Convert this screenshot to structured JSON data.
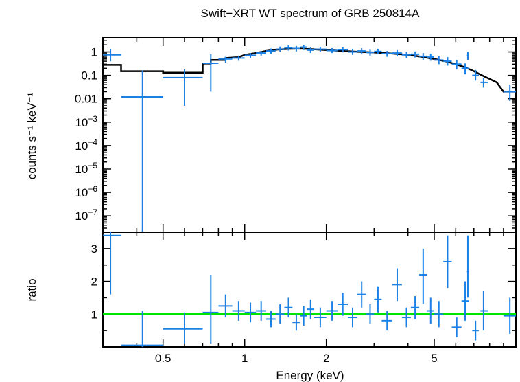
{
  "chart_data": {
    "type": "scatter",
    "title": "Swift−XRT WT spectrum of GRB 250814A",
    "xlabel": "Energy (keV)",
    "x_scale": "log",
    "xlim": [
      0.3,
      10
    ],
    "x_ticks": [
      0.5,
      1,
      2,
      5
    ],
    "x_tick_labels": [
      "0.5",
      "1",
      "2",
      "5"
    ],
    "panels": [
      {
        "name": "spectrum",
        "ylabel": "counts s⁻¹ keV⁻¹",
        "y_scale": "log",
        "ylim": [
          2e-08,
          4
        ],
        "y_ticks": [
          1,
          0.1,
          0.01,
          0.001,
          0.0001,
          1e-05,
          1e-06,
          1e-07
        ],
        "y_tick_labels": [
          {
            "base": "1",
            "exp": ""
          },
          {
            "base": "0.1",
            "exp": ""
          },
          {
            "base": "0.01",
            "exp": ""
          },
          {
            "base": "10",
            "exp": "−3"
          },
          {
            "base": "10",
            "exp": "−4"
          },
          {
            "base": "10",
            "exp": "−5"
          },
          {
            "base": "10",
            "exp": "−6"
          },
          {
            "base": "10",
            "exp": "−7"
          }
        ],
        "data_color": "#1a80e6",
        "model_color": "#000000",
        "data": [
          {
            "x": 0.32,
            "xlo": 0.3,
            "xhi": 0.35,
            "y": 0.75,
            "ylo": 0.4,
            "yhi": 1.3
          },
          {
            "x": 0.42,
            "xlo": 0.35,
            "xhi": 0.5,
            "y": 0.012,
            "ylo": 1e-08,
            "yhi": 0.16
          },
          {
            "x": 0.6,
            "xlo": 0.5,
            "xhi": 0.7,
            "y": 0.08,
            "ylo": 0.005,
            "yhi": 0.18
          },
          {
            "x": 0.75,
            "xlo": 0.7,
            "xhi": 0.8,
            "y": 0.33,
            "ylo": 0.02,
            "yhi": 0.8
          },
          {
            "x": 0.85,
            "xlo": 0.8,
            "xhi": 0.9,
            "y": 0.5,
            "ylo": 0.35,
            "yhi": 0.62
          },
          {
            "x": 0.95,
            "xlo": 0.9,
            "xhi": 1.0,
            "y": 0.55,
            "ylo": 0.42,
            "yhi": 0.7
          },
          {
            "x": 1.05,
            "xlo": 1.0,
            "xhi": 1.1,
            "y": 0.72,
            "ylo": 0.55,
            "yhi": 0.9
          },
          {
            "x": 1.15,
            "xlo": 1.1,
            "xhi": 1.2,
            "y": 0.9,
            "ylo": 0.7,
            "yhi": 1.1
          },
          {
            "x": 1.25,
            "xlo": 1.2,
            "xhi": 1.3,
            "y": 1.1,
            "ylo": 0.85,
            "yhi": 1.4
          },
          {
            "x": 1.35,
            "xlo": 1.3,
            "xhi": 1.4,
            "y": 1.3,
            "ylo": 1.0,
            "yhi": 1.7
          },
          {
            "x": 1.45,
            "xlo": 1.4,
            "xhi": 1.5,
            "y": 1.5,
            "ylo": 1.15,
            "yhi": 1.9
          },
          {
            "x": 1.55,
            "xlo": 1.5,
            "xhi": 1.6,
            "y": 1.4,
            "ylo": 1.05,
            "yhi": 1.8
          },
          {
            "x": 1.65,
            "xlo": 1.6,
            "xhi": 1.7,
            "y": 1.6,
            "ylo": 1.2,
            "yhi": 2.0
          },
          {
            "x": 1.75,
            "xlo": 1.7,
            "xhi": 1.8,
            "y": 1.2,
            "ylo": 0.9,
            "yhi": 1.55
          },
          {
            "x": 1.9,
            "xlo": 1.8,
            "xhi": 2.0,
            "y": 1.3,
            "ylo": 1.0,
            "yhi": 1.65
          },
          {
            "x": 2.1,
            "xlo": 2.0,
            "xhi": 2.2,
            "y": 1.15,
            "ylo": 0.9,
            "yhi": 1.45
          },
          {
            "x": 2.3,
            "xlo": 2.2,
            "xhi": 2.4,
            "y": 1.25,
            "ylo": 0.95,
            "yhi": 1.6
          },
          {
            "x": 2.5,
            "xlo": 2.4,
            "xhi": 2.6,
            "y": 1.0,
            "ylo": 0.75,
            "yhi": 1.3
          },
          {
            "x": 2.7,
            "xlo": 2.6,
            "xhi": 2.8,
            "y": 1.1,
            "ylo": 0.8,
            "yhi": 1.45
          },
          {
            "x": 2.9,
            "xlo": 2.8,
            "xhi": 3.0,
            "y": 0.95,
            "ylo": 0.7,
            "yhi": 1.25
          },
          {
            "x": 3.1,
            "xlo": 3.0,
            "xhi": 3.2,
            "y": 1.05,
            "ylo": 0.8,
            "yhi": 1.35
          },
          {
            "x": 3.35,
            "xlo": 3.2,
            "xhi": 3.5,
            "y": 0.85,
            "ylo": 0.62,
            "yhi": 1.1
          },
          {
            "x": 3.65,
            "xlo": 3.5,
            "xhi": 3.8,
            "y": 0.9,
            "ylo": 0.65,
            "yhi": 1.2
          },
          {
            "x": 3.95,
            "xlo": 3.8,
            "xhi": 4.1,
            "y": 0.75,
            "ylo": 0.55,
            "yhi": 1.0
          },
          {
            "x": 4.25,
            "xlo": 4.1,
            "xhi": 4.4,
            "y": 0.8,
            "ylo": 0.58,
            "yhi": 1.05
          },
          {
            "x": 4.55,
            "xlo": 4.4,
            "xhi": 4.7,
            "y": 0.65,
            "ylo": 0.45,
            "yhi": 0.9
          },
          {
            "x": 4.85,
            "xlo": 4.7,
            "xhi": 5.0,
            "y": 0.6,
            "ylo": 0.42,
            "yhi": 0.85
          },
          {
            "x": 5.2,
            "xlo": 5.0,
            "xhi": 5.4,
            "y": 0.45,
            "ylo": 0.3,
            "yhi": 0.65
          },
          {
            "x": 5.6,
            "xlo": 5.4,
            "xhi": 5.8,
            "y": 0.4,
            "ylo": 0.26,
            "yhi": 0.6
          },
          {
            "x": 6.05,
            "xlo": 5.8,
            "xhi": 6.3,
            "y": 0.3,
            "ylo": 0.18,
            "yhi": 0.46
          },
          {
            "x": 6.5,
            "xlo": 6.3,
            "xhi": 6.7,
            "y": 0.2,
            "ylo": 0.11,
            "yhi": 0.32
          },
          {
            "x": 6.65,
            "xlo": 6.6,
            "xhi": 6.7,
            "y": 0.7,
            "ylo": 0.45,
            "yhi": 1.0
          },
          {
            "x": 7.1,
            "xlo": 6.9,
            "xhi": 7.3,
            "y": 0.1,
            "ylo": 0.06,
            "yhi": 0.17
          },
          {
            "x": 7.6,
            "xlo": 7.4,
            "xhi": 7.9,
            "y": 0.05,
            "ylo": 0.03,
            "yhi": 0.08
          },
          {
            "x": 9.5,
            "xlo": 9.0,
            "xhi": 10.0,
            "y": 0.02,
            "ylo": 0.008,
            "yhi": 0.04
          }
        ],
        "model": [
          [
            0.3,
            0.28
          ],
          [
            0.35,
            0.28
          ],
          [
            0.35,
            0.15
          ],
          [
            0.5,
            0.15
          ],
          [
            0.5,
            0.13
          ],
          [
            0.7,
            0.13
          ],
          [
            0.7,
            0.32
          ],
          [
            0.75,
            0.32
          ],
          [
            0.75,
            0.45
          ],
          [
            0.85,
            0.45
          ],
          [
            0.85,
            0.55
          ],
          [
            0.95,
            0.6
          ],
          [
            1.0,
            0.75
          ],
          [
            1.1,
            0.9
          ],
          [
            1.2,
            1.1
          ],
          [
            1.3,
            1.25
          ],
          [
            1.45,
            1.35
          ],
          [
            1.6,
            1.38
          ],
          [
            1.8,
            1.3
          ],
          [
            2.0,
            1.2
          ],
          [
            2.3,
            1.1
          ],
          [
            2.6,
            1.02
          ],
          [
            3.0,
            0.95
          ],
          [
            3.5,
            0.85
          ],
          [
            4.0,
            0.75
          ],
          [
            4.5,
            0.62
          ],
          [
            5.0,
            0.5
          ],
          [
            5.5,
            0.4
          ],
          [
            6.0,
            0.3
          ],
          [
            6.5,
            0.22
          ],
          [
            7.0,
            0.15
          ],
          [
            7.5,
            0.1
          ],
          [
            8.0,
            0.07
          ],
          [
            8.5,
            0.05
          ],
          [
            9.0,
            0.02
          ],
          [
            10.0,
            0.02
          ]
        ]
      },
      {
        "name": "ratio",
        "ylabel": "ratio",
        "y_scale": "linear",
        "ylim": [
          0.0,
          3.5
        ],
        "y_ticks": [
          1,
          2,
          3
        ],
        "y_tick_labels": [
          "1",
          "2",
          "3"
        ],
        "reference_line": 1,
        "reference_color": "#00e600",
        "data_color": "#1a80e6",
        "data": [
          {
            "x": 0.32,
            "xlo": 0.3,
            "xhi": 0.35,
            "y": 3.4,
            "ylo": 1.6,
            "yhi": 3.5
          },
          {
            "x": 0.42,
            "xlo": 0.35,
            "xhi": 0.5,
            "y": 0.05,
            "ylo": 0.0,
            "yhi": 1.1
          },
          {
            "x": 0.6,
            "xlo": 0.5,
            "xhi": 0.7,
            "y": 0.55,
            "ylo": 0.1,
            "yhi": 1.05
          },
          {
            "x": 0.75,
            "xlo": 0.7,
            "xhi": 0.8,
            "y": 1.05,
            "ylo": 0.1,
            "yhi": 2.2
          },
          {
            "x": 0.85,
            "xlo": 0.8,
            "xhi": 0.9,
            "y": 1.25,
            "ylo": 0.9,
            "yhi": 1.6
          },
          {
            "x": 0.95,
            "xlo": 0.9,
            "xhi": 1.0,
            "y": 1.1,
            "ylo": 0.8,
            "yhi": 1.4
          },
          {
            "x": 1.05,
            "xlo": 1.0,
            "xhi": 1.1,
            "y": 1.05,
            "ylo": 0.75,
            "yhi": 1.35
          },
          {
            "x": 1.15,
            "xlo": 1.1,
            "xhi": 1.2,
            "y": 1.1,
            "ylo": 0.8,
            "yhi": 1.4
          },
          {
            "x": 1.25,
            "xlo": 1.2,
            "xhi": 1.3,
            "y": 0.85,
            "ylo": 0.6,
            "yhi": 1.1
          },
          {
            "x": 1.35,
            "xlo": 1.3,
            "xhi": 1.4,
            "y": 1.0,
            "ylo": 0.7,
            "yhi": 1.3
          },
          {
            "x": 1.45,
            "xlo": 1.4,
            "xhi": 1.5,
            "y": 1.2,
            "ylo": 0.9,
            "yhi": 1.5
          },
          {
            "x": 1.55,
            "xlo": 1.5,
            "xhi": 1.6,
            "y": 0.75,
            "ylo": 0.5,
            "yhi": 1.0
          },
          {
            "x": 1.65,
            "xlo": 1.6,
            "xhi": 1.7,
            "y": 0.95,
            "ylo": 0.65,
            "yhi": 1.25
          },
          {
            "x": 1.75,
            "xlo": 1.7,
            "xhi": 1.8,
            "y": 1.15,
            "ylo": 0.85,
            "yhi": 1.45
          },
          {
            "x": 1.9,
            "xlo": 1.8,
            "xhi": 2.0,
            "y": 0.9,
            "ylo": 0.6,
            "yhi": 1.2
          },
          {
            "x": 2.1,
            "xlo": 2.0,
            "xhi": 2.2,
            "y": 1.1,
            "ylo": 0.8,
            "yhi": 1.4
          },
          {
            "x": 2.3,
            "xlo": 2.2,
            "xhi": 2.4,
            "y": 1.3,
            "ylo": 0.95,
            "yhi": 1.65
          },
          {
            "x": 2.5,
            "xlo": 2.4,
            "xhi": 2.6,
            "y": 0.9,
            "ylo": 0.6,
            "yhi": 1.2
          },
          {
            "x": 2.7,
            "xlo": 2.6,
            "xhi": 2.8,
            "y": 1.6,
            "ylo": 1.2,
            "yhi": 2.0
          },
          {
            "x": 2.9,
            "xlo": 2.8,
            "xhi": 3.0,
            "y": 1.0,
            "ylo": 0.7,
            "yhi": 1.3
          },
          {
            "x": 3.1,
            "xlo": 3.0,
            "xhi": 3.2,
            "y": 1.45,
            "ylo": 1.05,
            "yhi": 1.85
          },
          {
            "x": 3.35,
            "xlo": 3.2,
            "xhi": 3.5,
            "y": 0.8,
            "ylo": 0.5,
            "yhi": 1.1
          },
          {
            "x": 3.65,
            "xlo": 3.5,
            "xhi": 3.8,
            "y": 1.9,
            "ylo": 1.4,
            "yhi": 2.4
          },
          {
            "x": 3.95,
            "xlo": 3.8,
            "xhi": 4.1,
            "y": 0.9,
            "ylo": 0.6,
            "yhi": 1.2
          },
          {
            "x": 4.25,
            "xlo": 4.1,
            "xhi": 4.4,
            "y": 1.2,
            "ylo": 0.85,
            "yhi": 1.55
          },
          {
            "x": 4.55,
            "xlo": 4.4,
            "xhi": 4.7,
            "y": 2.2,
            "ylo": 1.3,
            "yhi": 3.0
          },
          {
            "x": 4.85,
            "xlo": 4.7,
            "xhi": 5.0,
            "y": 1.1,
            "ylo": 0.7,
            "yhi": 1.5
          },
          {
            "x": 5.2,
            "xlo": 5.0,
            "xhi": 5.4,
            "y": 1.0,
            "ylo": 0.6,
            "yhi": 1.4
          },
          {
            "x": 5.6,
            "xlo": 5.4,
            "xhi": 5.8,
            "y": 2.6,
            "ylo": 1.8,
            "yhi": 3.4
          },
          {
            "x": 6.05,
            "xlo": 5.8,
            "xhi": 6.3,
            "y": 0.6,
            "ylo": 0.3,
            "yhi": 0.9
          },
          {
            "x": 6.5,
            "xlo": 6.3,
            "xhi": 6.7,
            "y": 1.4,
            "ylo": 0.8,
            "yhi": 2.0
          },
          {
            "x": 6.65,
            "xlo": 6.6,
            "xhi": 6.7,
            "y": 2.3,
            "ylo": 1.5,
            "yhi": 3.4
          },
          {
            "x": 7.1,
            "xlo": 6.9,
            "xhi": 7.3,
            "y": 0.5,
            "ylo": 0.2,
            "yhi": 0.8
          },
          {
            "x": 7.6,
            "xlo": 7.4,
            "xhi": 7.9,
            "y": 1.1,
            "ylo": 0.5,
            "yhi": 1.7
          },
          {
            "x": 9.5,
            "xlo": 9.0,
            "xhi": 10.0,
            "y": 0.95,
            "ylo": 0.4,
            "yhi": 1.5
          }
        ]
      }
    ]
  }
}
